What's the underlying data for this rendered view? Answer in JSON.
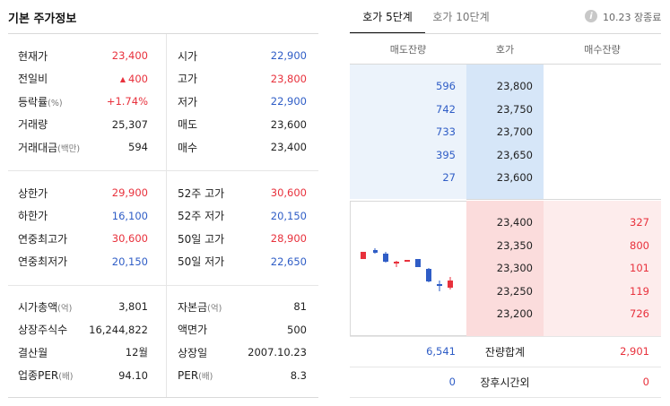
{
  "left": {
    "title": "기본 주가정보",
    "section1": [
      {
        "la": "현재가",
        "ua": "",
        "va": "23,400",
        "ca": "red",
        "lb": "시가",
        "ub": "",
        "vb": "22,900",
        "cb": "blue"
      },
      {
        "la": "전일비",
        "ua": "",
        "va": "400",
        "ca": "red",
        "tri": "▲",
        "lb": "고가",
        "ub": "",
        "vb": "23,800",
        "cb": "red"
      },
      {
        "la": "등락률",
        "ua": "(%)",
        "va": "+1.74%",
        "ca": "red",
        "lb": "저가",
        "ub": "",
        "vb": "22,900",
        "cb": "blue"
      },
      {
        "la": "거래량",
        "ua": "",
        "va": "25,307",
        "ca": "dark",
        "lb": "매도",
        "ub": "",
        "vb": "23,600",
        "cb": "dark"
      },
      {
        "la": "거래대금",
        "ua": "(백만)",
        "va": "594",
        "ca": "dark",
        "lb": "매수",
        "ub": "",
        "vb": "23,400",
        "cb": "dark"
      }
    ],
    "section2": [
      {
        "la": "상한가",
        "ua": "",
        "va": "29,900",
        "ca": "red",
        "lb": "52주 고가",
        "ub": "",
        "vb": "30,600",
        "cb": "red"
      },
      {
        "la": "하한가",
        "ua": "",
        "va": "16,100",
        "ca": "blue",
        "lb": "52주 저가",
        "ub": "",
        "vb": "20,150",
        "cb": "blue"
      },
      {
        "la": "연중최고가",
        "ua": "",
        "va": "30,600",
        "ca": "red",
        "lb": "50일 고가",
        "ub": "",
        "vb": "28,900",
        "cb": "red"
      },
      {
        "la": "연중최저가",
        "ua": "",
        "va": "20,150",
        "ca": "blue",
        "lb": "50일 저가",
        "ub": "",
        "vb": "22,650",
        "cb": "blue"
      }
    ],
    "section3": [
      {
        "la": "시가총액",
        "ua": "(억)",
        "va": "3,801",
        "ca": "dark",
        "lb": "자본금",
        "ub": "(억)",
        "vb": "81",
        "cb": "dark"
      },
      {
        "la": "상장주식수",
        "ua": "",
        "va": "16,244,822",
        "ca": "dark",
        "lb": "액면가",
        "ub": "",
        "vb": "500",
        "cb": "dark"
      },
      {
        "la": "결산월",
        "ua": "",
        "va": "12월",
        "ca": "dark",
        "lb": "상장일",
        "ub": "",
        "vb": "2007.10.23",
        "cb": "dark"
      },
      {
        "la": "업종PER",
        "ua": "(배)",
        "va": "94.10",
        "ca": "dark",
        "lb": "PER",
        "ub": "(배)",
        "vb": "8.3",
        "cb": "dark"
      }
    ]
  },
  "right": {
    "tabs": [
      "호가 5단계",
      "호가 10단계"
    ],
    "info_icon": "i",
    "status": "10.23 장종료",
    "headers": [
      "매도잔량",
      "호가",
      "매수잔량"
    ],
    "asks": [
      {
        "qty": "596",
        "price": "23,800"
      },
      {
        "qty": "742",
        "price": "23,750"
      },
      {
        "qty": "733",
        "price": "23,700"
      },
      {
        "qty": "395",
        "price": "23,650"
      },
      {
        "qty": "27",
        "price": "23,600"
      }
    ],
    "bids": [
      {
        "price": "23,400",
        "qty": "327"
      },
      {
        "price": "23,350",
        "qty": "800"
      },
      {
        "price": "23,300",
        "qty": "101"
      },
      {
        "price": "23,250",
        "qty": "119"
      },
      {
        "price": "23,200",
        "qty": "726"
      }
    ],
    "summary": [
      {
        "left": "6,541",
        "label": "잔량합계",
        "right": "2,901"
      },
      {
        "left": "0",
        "label": "장후시간외",
        "right": "0"
      }
    ],
    "colors": {
      "up": "#e8313c",
      "down": "#2f5dc6"
    }
  }
}
